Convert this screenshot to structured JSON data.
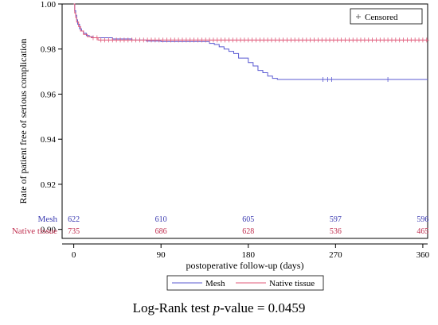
{
  "chart_data": {
    "type": "line",
    "subtype": "kaplan-meier",
    "xlabel": "postoperative follow-up (days)",
    "ylabel": "Rate of patient free of serious complication",
    "xlim": [
      -12,
      365
    ],
    "ylim": [
      0.896,
      1.0
    ],
    "x_ticks": [
      0,
      90,
      180,
      270,
      360
    ],
    "y_ticks": [
      0.9,
      0.92,
      0.94,
      0.96,
      0.98,
      1.0
    ],
    "y_tick_labels": [
      "0.90",
      "0.92",
      "0.94",
      "0.96",
      "0.98",
      "1.00"
    ],
    "grid": false,
    "legend_position": "bottom",
    "censor_legend": {
      "label": "Censored",
      "symbol": "+",
      "position": "top-right"
    },
    "series": [
      {
        "name": "Mesh",
        "color": "#5a5ad2",
        "label_color": "#3a3ab0",
        "x": [
          0,
          1,
          2,
          3,
          4,
          6,
          8,
          10,
          13,
          16,
          20,
          40,
          60,
          75,
          90,
          110,
          130,
          140,
          145,
          150,
          155,
          160,
          165,
          170,
          180,
          185,
          190,
          195,
          200,
          205,
          210,
          365
        ],
        "y": [
          1.0,
          0.997,
          0.995,
          0.993,
          0.991,
          0.989,
          0.988,
          0.987,
          0.986,
          0.9855,
          0.985,
          0.9845,
          0.984,
          0.9835,
          0.9833,
          0.9833,
          0.9833,
          0.9825,
          0.982,
          0.981,
          0.98,
          0.979,
          0.978,
          0.976,
          0.974,
          0.9725,
          0.9705,
          0.9695,
          0.968,
          0.967,
          0.9665,
          0.9665
        ],
        "censored_x": [
          257,
          262,
          266,
          324
        ],
        "at_risk": [
          622,
          610,
          605,
          597,
          596
        ]
      },
      {
        "name": "Native tissue",
        "color": "#e05a7a",
        "label_color": "#c03050",
        "x": [
          0,
          1,
          2,
          3,
          5,
          7,
          10,
          14,
          18,
          25,
          365
        ],
        "y": [
          1.0,
          0.996,
          0.994,
          0.992,
          0.99,
          0.988,
          0.9865,
          0.9855,
          0.985,
          0.984,
          0.984
        ],
        "censored_start": 20,
        "censored_end": 365,
        "censored_step": 4,
        "at_risk": [
          735,
          686,
          628,
          536,
          465
        ]
      }
    ],
    "caption": {
      "prefix": "Log-Rank test ",
      "italic": "p",
      "suffix": "-value = 0.0459"
    }
  }
}
